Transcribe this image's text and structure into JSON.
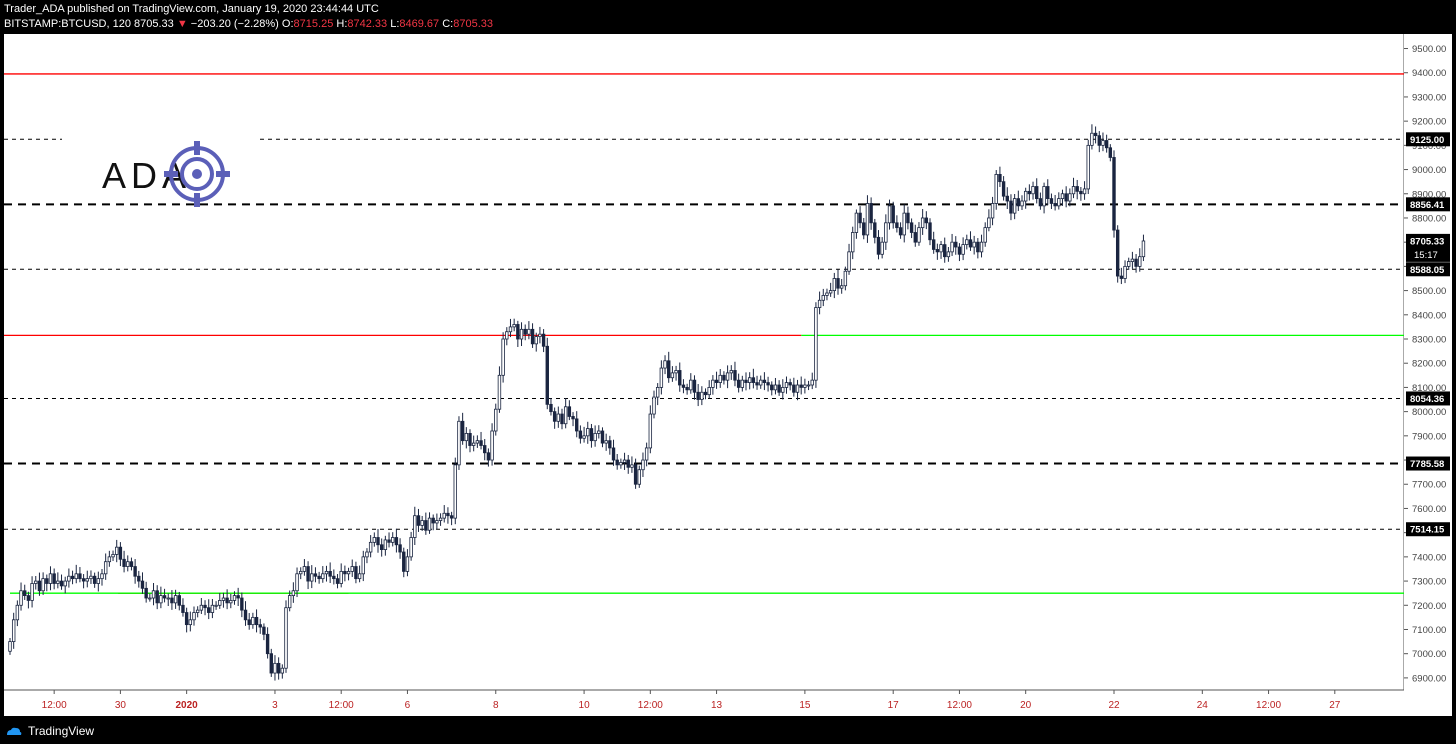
{
  "header": {
    "published": "Trader_ADA published on TradingView.com, January 19, 2020 23:44:44 UTC",
    "symbol": "BITSTAMP:BTCUSD, 120",
    "last": "8705.33",
    "change": "−203.20 (−2.28%)",
    "o_label": "O:",
    "o_value": "8715.25",
    "h_label": "H:",
    "h_value": "8742.33",
    "l_label": "L:",
    "l_value": "8469.67",
    "c_label": "C:",
    "c_value": "8705.33"
  },
  "logo": {
    "text": "ADA"
  },
  "footer": {
    "brand": "TradingView"
  },
  "colors": {
    "up": "#ffffff",
    "down": "#1a2540",
    "red_level": "#ff0000",
    "green_level": "#00ff00",
    "dash": "#000000"
  },
  "chart_data": {
    "type": "candlestick",
    "symbol": "BITSTAMP:BTCUSD",
    "interval": "120",
    "y_range": [
      6850,
      9560
    ],
    "y_ticks": [
      6900,
      7000,
      7100,
      7200,
      7300,
      7400,
      7500,
      7600,
      7700,
      7800,
      7900,
      8000,
      8100,
      8200,
      8300,
      8400,
      8500,
      8600,
      8700,
      8800,
      8900,
      9000,
      9100,
      9200,
      9300,
      9400,
      9500
    ],
    "y_tick_labels": [
      "6900.00",
      "7000.00",
      "7100.00",
      "7200.00",
      "7300.00",
      "7400.00",
      "7500.00",
      "7600.00",
      "7700.00",
      "7800.00",
      "7900.00",
      "8000.00",
      "8100.00",
      "8200.00",
      "8300.00",
      "8400.00",
      "8500.00",
      "8600.00",
      "8700.00",
      "8800.00",
      "8900.00",
      "9000.00",
      "9100.00",
      "9200.00",
      "9300.00",
      "9400.00",
      "9500.00"
    ],
    "x_ticks": [
      {
        "t": "12:00",
        "i": 12
      },
      {
        "t": "30",
        "i": 30
      },
      {
        "t": "2020",
        "i": 48
      },
      {
        "t": "3",
        "i": 72
      },
      {
        "t": "12:00",
        "i": 90
      },
      {
        "t": "6",
        "i": 108
      },
      {
        "t": "8",
        "i": 132
      },
      {
        "t": "10",
        "i": 156
      },
      {
        "t": "12:00",
        "i": 174
      },
      {
        "t": "13",
        "i": 192
      },
      {
        "t": "15",
        "i": 216
      },
      {
        "t": "17",
        "i": 240
      },
      {
        "t": "12:00",
        "i": 258
      },
      {
        "t": "20",
        "i": 276
      },
      {
        "t": "22",
        "i": 300
      },
      {
        "t": "24",
        "i": 324
      },
      {
        "t": "12:00",
        "i": 342
      },
      {
        "t": "27",
        "i": 360
      }
    ],
    "levels_dashed": [
      {
        "price": 9125.0,
        "label": "9125.00",
        "weight": 1
      },
      {
        "price": 8856.41,
        "label": "8856.41",
        "weight": 2
      },
      {
        "price": 8588.05,
        "label": "8588.05",
        "weight": 1
      },
      {
        "price": 8054.36,
        "label": "8054.36",
        "weight": 1
      },
      {
        "price": 7785.58,
        "label": "7785.58",
        "weight": 2
      },
      {
        "price": 7514.15,
        "label": "7514.15",
        "weight": 1
      }
    ],
    "levels_red": [
      {
        "price": 9395,
        "from": 0,
        "to": 380
      },
      {
        "price": 8315,
        "from": 0,
        "to": 215
      },
      {
        "price": 7250,
        "from": 31,
        "to": 92
      }
    ],
    "levels_green": [
      {
        "price": 8315,
        "from": 215,
        "to": 380
      },
      {
        "price": 7250,
        "from": 0,
        "to": 380
      }
    ],
    "last_price": {
      "price": 8705.33,
      "label": "8705.33",
      "timer": "15:17"
    },
    "closes": [
      7050,
      7140,
      7200,
      7260,
      7240,
      7220,
      7290,
      7300,
      7260,
      7310,
      7290,
      7330,
      7290,
      7300,
      7280,
      7300,
      7320,
      7310,
      7330,
      7310,
      7300,
      7310,
      7320,
      7290,
      7310,
      7330,
      7380,
      7400,
      7410,
      7440,
      7390,
      7360,
      7380,
      7360,
      7320,
      7300,
      7270,
      7230,
      7230,
      7260,
      7210,
      7240,
      7230,
      7230,
      7210,
      7240,
      7200,
      7170,
      7120,
      7140,
      7170,
      7180,
      7200,
      7190,
      7170,
      7200,
      7200,
      7220,
      7230,
      7210,
      7220,
      7240,
      7230,
      7180,
      7140,
      7120,
      7150,
      7120,
      7110,
      7080,
      7000,
      6920,
      6960,
      6920,
      6940,
      7190,
      7240,
      7260,
      7330,
      7340,
      7360,
      7300,
      7330,
      7320,
      7310,
      7330,
      7340,
      7320,
      7310,
      7290,
      7340,
      7330,
      7340,
      7360,
      7310,
      7330,
      7400,
      7420,
      7460,
      7480,
      7450,
      7430,
      7470,
      7460,
      7480,
      7450,
      7420,
      7340,
      7400,
      7480,
      7570,
      7530,
      7550,
      7510,
      7560,
      7540,
      7550,
      7560,
      7580,
      7570,
      7560,
      7780,
      7960,
      7880,
      7910,
      7860,
      7870,
      7880,
      7860,
      7830,
      7800,
      7920,
      8010,
      8150,
      8300,
      8330,
      8350,
      8360,
      8300,
      8340,
      8320,
      8340,
      8280,
      8310,
      8320,
      8270,
      8030,
      8000,
      7960,
      7990,
      7950,
      8020,
      7980,
      7970,
      7920,
      7890,
      7900,
      7930,
      7880,
      7910,
      7920,
      7870,
      7880,
      7850,
      7800,
      7780,
      7790,
      7800,
      7770,
      7780,
      7700,
      7760,
      7800,
      7850,
      7990,
      8060,
      8100,
      8180,
      8210,
      8140,
      8160,
      8170,
      8110,
      8100,
      8090,
      8130,
      8080,
      8050,
      8080,
      8070,
      8100,
      8130,
      8120,
      8150,
      8130,
      8160,
      8170,
      8130,
      8100,
      8130,
      8120,
      8140,
      8120,
      8110,
      8130,
      8120,
      8110,
      8090,
      8110,
      8080,
      8100,
      8120,
      8110,
      8080,
      8110,
      8100,
      8110,
      8110,
      8130,
      8430,
      8460,
      8480,
      8490,
      8500,
      8550,
      8510,
      8520,
      8580,
      8660,
      8740,
      8820,
      8780,
      8730,
      8860,
      8780,
      8720,
      8650,
      8700,
      8780,
      8850,
      8780,
      8760,
      8730,
      8820,
      8780,
      8740,
      8700,
      8760,
      8800,
      8780,
      8710,
      8670,
      8660,
      8690,
      8640,
      8660,
      8700,
      8680,
      8650,
      8690,
      8710,
      8680,
      8700,
      8660,
      8700,
      8760,
      8800,
      8860,
      8980,
      8950,
      8890,
      8870,
      8820,
      8880,
      8850,
      8870,
      8910,
      8900,
      8930,
      8880,
      8850,
      8930,
      8880,
      8860,
      8850,
      8880,
      8900,
      8870,
      8900,
      8930,
      8910,
      8900,
      8920,
      9100,
      9150,
      9140,
      9100,
      9120,
      9090,
      9050,
      8750,
      8560,
      8550,
      8600,
      8620,
      8630,
      8600,
      8640,
      8705
    ]
  }
}
